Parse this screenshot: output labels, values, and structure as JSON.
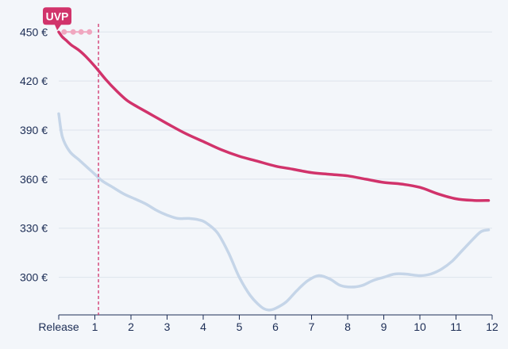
{
  "colors": {
    "background": "#f3f6fa",
    "grid": "#dde3ec",
    "axis": "#1c2d55",
    "primary_series": "#d1336b",
    "secondary_series": "#c5d5e8",
    "badge": "#d1336b",
    "badge_dots": "#f0a7c0",
    "release_marker": "#d1336b"
  },
  "badge": {
    "label": "UVP"
  },
  "chart_data": {
    "type": "line",
    "x_tick_labels": [
      "Release",
      "1",
      "2",
      "3",
      "4",
      "5",
      "6",
      "7",
      "8",
      "9",
      "10",
      "11",
      "12"
    ],
    "x_ticks": [
      0,
      1,
      2,
      3,
      4,
      5,
      6,
      7,
      8,
      9,
      10,
      11,
      12
    ],
    "y_tick_labels": [
      "300 €",
      "330 €",
      "360 €",
      "390 €",
      "420 €",
      "450 €"
    ],
    "y_ticks": [
      300,
      330,
      360,
      390,
      420,
      450
    ],
    "xlim": [
      0,
      12
    ],
    "ylim": [
      277,
      455
    ],
    "grid": true,
    "legend": "none",
    "vertical_marker_x": 1.1,
    "uvp_value": 450,
    "series": [
      {
        "color": "#d1336b",
        "x": [
          0,
          0.1,
          0.2,
          0.35,
          0.55,
          0.75,
          1.0,
          1.3,
          1.6,
          1.9,
          2.2,
          2.6,
          3.0,
          3.5,
          4.0,
          4.5,
          5.0,
          5.5,
          6.0,
          6.5,
          7.0,
          7.5,
          8.0,
          8.5,
          9.0,
          9.5,
          10.0,
          10.5,
          11.0,
          11.5,
          11.9
        ],
        "values": [
          450,
          447,
          445,
          442,
          439,
          435,
          429,
          421,
          414,
          408,
          404,
          399,
          394,
          388,
          383,
          378,
          374,
          371,
          368,
          366,
          364,
          363,
          362,
          360,
          358,
          357,
          355,
          351,
          348,
          347,
          347
        ]
      },
      {
        "color": "#c5d5e8",
        "x": [
          0,
          0.1,
          0.3,
          0.55,
          0.8,
          1.0,
          1.2,
          1.5,
          1.8,
          2.1,
          2.4,
          2.7,
          3.0,
          3.3,
          3.6,
          3.9,
          4.1,
          4.4,
          4.7,
          5.0,
          5.3,
          5.6,
          5.8,
          6.0,
          6.3,
          6.6,
          6.9,
          7.2,
          7.5,
          7.8,
          8.1,
          8.4,
          8.7,
          9.0,
          9.3,
          9.6,
          10.0,
          10.3,
          10.6,
          10.9,
          11.2,
          11.5,
          11.7,
          11.9
        ],
        "values": [
          400,
          386,
          377,
          372,
          367,
          363,
          359,
          355,
          351,
          348,
          345,
          341,
          338,
          336,
          336,
          335,
          333,
          327,
          315,
          300,
          289,
          282,
          280,
          281,
          285,
          292,
          298,
          301,
          299,
          295,
          294,
          295,
          298,
          300,
          302,
          302,
          301,
          302,
          305,
          310,
          317,
          324,
          328,
          329
        ]
      }
    ]
  }
}
